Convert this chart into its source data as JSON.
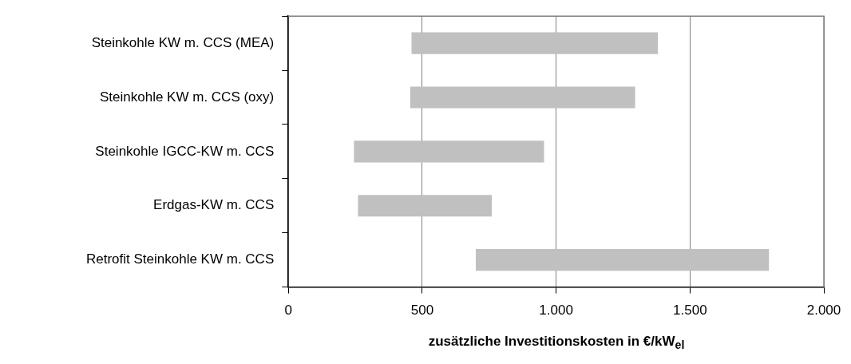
{
  "chart_data": {
    "type": "bar",
    "orientation": "horizontal",
    "xlabel": "zusätzliche Investitionskosten in €/kW$_{el}$",
    "categories": [
      "Steinkohle KW m. CCS (MEA)",
      "Steinkohle KW m. CCS (oxy)",
      "Steinkohle IGCC-KW m. CCS",
      "Erdgas-KW m. CCS",
      "Retrofit Steinkohle KW m. CCS"
    ],
    "base": [
      460,
      455,
      245,
      260,
      700
    ],
    "values": [
      920,
      840,
      710,
      500,
      1095
    ],
    "color": "#c0c0c0",
    "xlim": [
      0,
      2000
    ],
    "xticks": [
      0,
      500,
      {
        "value": 1000,
        "label": "1.000"
      },
      {
        "value": 1500,
        "label": "1.500"
      },
      {
        "value": 2000,
        "label": "2.000"
      }
    ],
    "grid": "x",
    "legend": false
  }
}
